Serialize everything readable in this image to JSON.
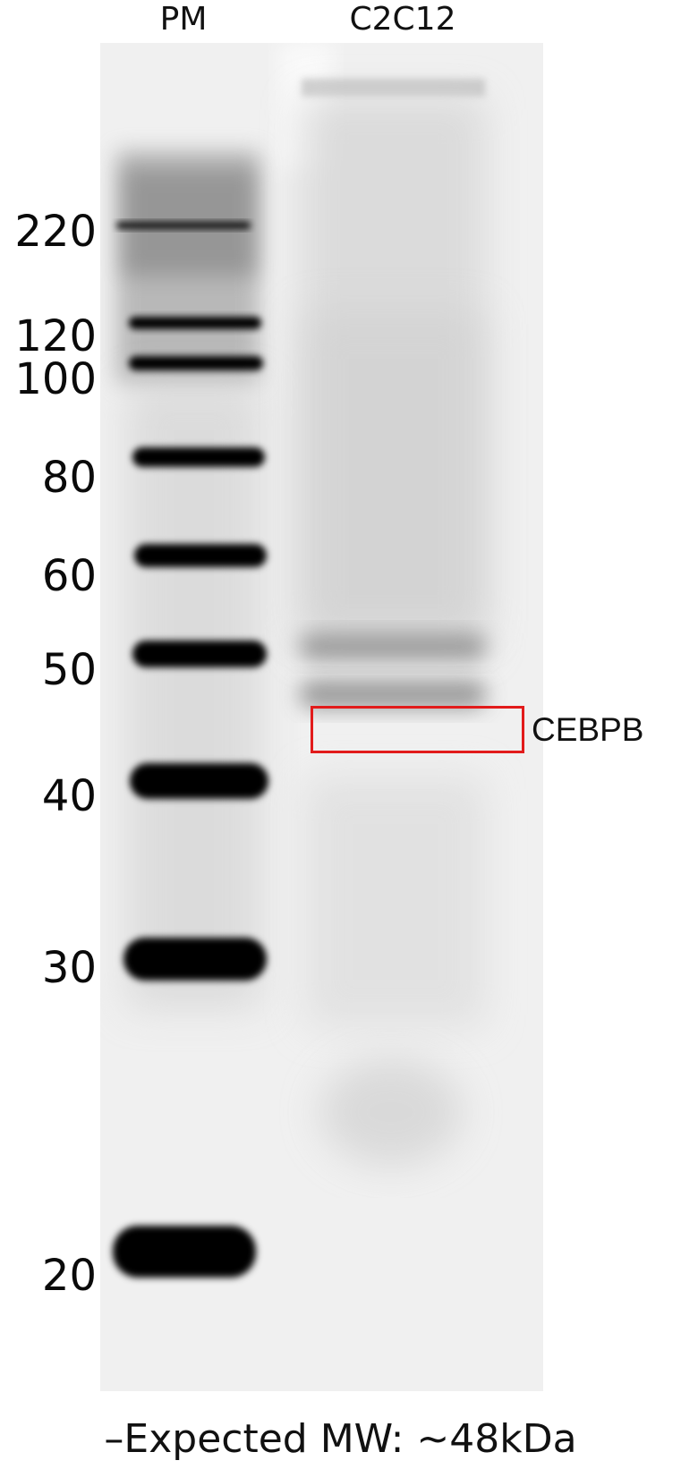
{
  "lanes": {
    "marker_lane": "PM",
    "sample_lane": "C2C12"
  },
  "markers": [
    "220",
    "120",
    "100",
    "80",
    "60",
    "50",
    "40",
    "30",
    "20"
  ],
  "target": {
    "label": "CEBPB",
    "box_color": "#e21b1b"
  },
  "footer": {
    "note": "–Expected MW: ~48kDa"
  },
  "colors": {
    "membrane_background": "#f2f2f2",
    "band_dark": "#050505"
  }
}
